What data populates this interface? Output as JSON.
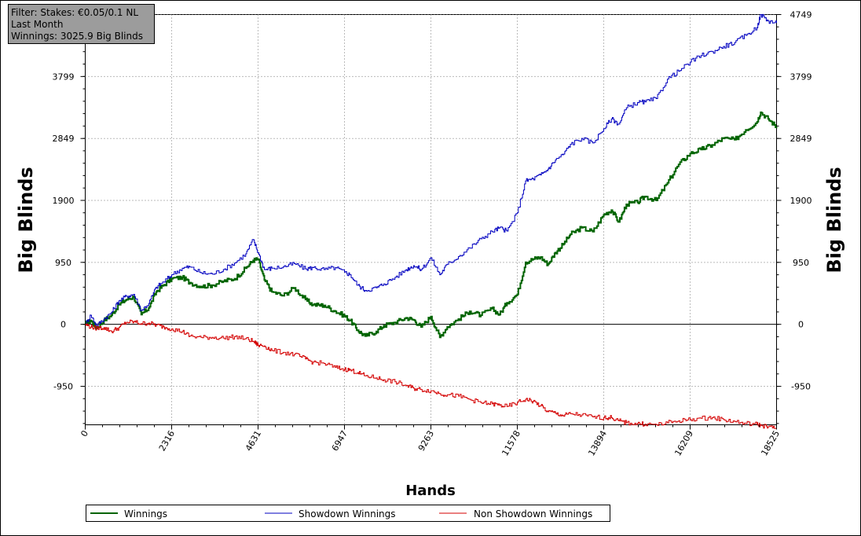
{
  "filter_box": {
    "line1": "Filter: Stakes: €0.05/0.1 NL",
    "line2": "Last Month",
    "line3": "Winnings: 3025.9 Big Blinds"
  },
  "chart_data": {
    "type": "line",
    "xlabel": "Hands",
    "ylabel_left": "Big Blinds",
    "ylabel_right": "Big Blinds",
    "xlim": [
      0,
      18525
    ],
    "ylim": [
      -1540,
      4749
    ],
    "x_ticks": [
      0,
      2316,
      4631,
      6947,
      9263,
      11578,
      13894,
      16209,
      18525
    ],
    "y_ticks": [
      -950,
      0,
      950,
      1900,
      2849,
      3799,
      4749
    ],
    "grid": true,
    "legend_position": "bottom",
    "series": [
      {
        "name": "Winnings",
        "color": "#006400",
        "points": [
          [
            0,
            0
          ],
          [
            150,
            60
          ],
          [
            300,
            -60
          ],
          [
            500,
            60
          ],
          [
            700,
            140
          ],
          [
            900,
            300
          ],
          [
            1100,
            380
          ],
          [
            1300,
            420
          ],
          [
            1500,
            150
          ],
          [
            1700,
            250
          ],
          [
            1900,
            500
          ],
          [
            2100,
            600
          ],
          [
            2316,
            700
          ],
          [
            2600,
            720
          ],
          [
            2800,
            640
          ],
          [
            3100,
            580
          ],
          [
            3400,
            600
          ],
          [
            3700,
            660
          ],
          [
            4000,
            700
          ],
          [
            4300,
            860
          ],
          [
            4500,
            980
          ],
          [
            4631,
            1000
          ],
          [
            4800,
            680
          ],
          [
            5000,
            500
          ],
          [
            5300,
            440
          ],
          [
            5600,
            560
          ],
          [
            5900,
            380
          ],
          [
            6100,
            300
          ],
          [
            6400,
            290
          ],
          [
            6700,
            200
          ],
          [
            6947,
            130
          ],
          [
            7100,
            60
          ],
          [
            7300,
            -90
          ],
          [
            7500,
            -180
          ],
          [
            7800,
            -110
          ],
          [
            8000,
            -20
          ],
          [
            8300,
            30
          ],
          [
            8600,
            100
          ],
          [
            8800,
            70
          ],
          [
            9000,
            -40
          ],
          [
            9263,
            120
          ],
          [
            9500,
            -200
          ],
          [
            9700,
            -40
          ],
          [
            10000,
            80
          ],
          [
            10300,
            200
          ],
          [
            10600,
            140
          ],
          [
            10900,
            240
          ],
          [
            11100,
            150
          ],
          [
            11300,
            330
          ],
          [
            11578,
            460
          ],
          [
            11800,
            950
          ],
          [
            12000,
            1000
          ],
          [
            12200,
            1030
          ],
          [
            12400,
            920
          ],
          [
            12600,
            1100
          ],
          [
            12800,
            1220
          ],
          [
            13000,
            1380
          ],
          [
            13300,
            1480
          ],
          [
            13600,
            1420
          ],
          [
            13894,
            1680
          ],
          [
            14100,
            1750
          ],
          [
            14300,
            1570
          ],
          [
            14500,
            1840
          ],
          [
            14800,
            1870
          ],
          [
            15000,
            1960
          ],
          [
            15300,
            1900
          ],
          [
            15600,
            2170
          ],
          [
            15900,
            2450
          ],
          [
            16209,
            2620
          ],
          [
            16500,
            2680
          ],
          [
            16800,
            2750
          ],
          [
            17100,
            2850
          ],
          [
            17400,
            2830
          ],
          [
            17700,
            2980
          ],
          [
            18000,
            3100
          ],
          [
            18100,
            3250
          ],
          [
            18300,
            3150
          ],
          [
            18525,
            3026
          ]
        ]
      },
      {
        "name": "Showdown Winnings",
        "color": "#0000c0",
        "points": [
          [
            0,
            0
          ],
          [
            150,
            140
          ],
          [
            300,
            -20
          ],
          [
            500,
            80
          ],
          [
            700,
            180
          ],
          [
            900,
            360
          ],
          [
            1100,
            430
          ],
          [
            1300,
            460
          ],
          [
            1500,
            210
          ],
          [
            1700,
            320
          ],
          [
            1900,
            570
          ],
          [
            2100,
            650
          ],
          [
            2316,
            760
          ],
          [
            2600,
            860
          ],
          [
            2800,
            880
          ],
          [
            3100,
            790
          ],
          [
            3400,
            770
          ],
          [
            3700,
            840
          ],
          [
            4000,
            940
          ],
          [
            4300,
            1080
          ],
          [
            4500,
            1300
          ],
          [
            4631,
            1100
          ],
          [
            4800,
            840
          ],
          [
            5000,
            860
          ],
          [
            5300,
            880
          ],
          [
            5600,
            930
          ],
          [
            5900,
            850
          ],
          [
            6100,
            870
          ],
          [
            6400,
            840
          ],
          [
            6700,
            870
          ],
          [
            6947,
            800
          ],
          [
            7100,
            760
          ],
          [
            7300,
            600
          ],
          [
            7500,
            520
          ],
          [
            7800,
            560
          ],
          [
            8000,
            620
          ],
          [
            8300,
            720
          ],
          [
            8600,
            840
          ],
          [
            8800,
            900
          ],
          [
            9000,
            840
          ],
          [
            9263,
            1020
          ],
          [
            9500,
            760
          ],
          [
            9700,
            920
          ],
          [
            10000,
            1040
          ],
          [
            10300,
            1170
          ],
          [
            10600,
            1310
          ],
          [
            10900,
            1420
          ],
          [
            11100,
            1480
          ],
          [
            11300,
            1430
          ],
          [
            11578,
            1710
          ],
          [
            11800,
            2200
          ],
          [
            12000,
            2230
          ],
          [
            12200,
            2290
          ],
          [
            12400,
            2380
          ],
          [
            12600,
            2520
          ],
          [
            12800,
            2600
          ],
          [
            13000,
            2760
          ],
          [
            13300,
            2850
          ],
          [
            13600,
            2780
          ],
          [
            13894,
            3000
          ],
          [
            14100,
            3150
          ],
          [
            14300,
            3070
          ],
          [
            14500,
            3320
          ],
          [
            14800,
            3400
          ],
          [
            15000,
            3410
          ],
          [
            15300,
            3460
          ],
          [
            15600,
            3760
          ],
          [
            15900,
            3880
          ],
          [
            16209,
            4020
          ],
          [
            16500,
            4120
          ],
          [
            16800,
            4180
          ],
          [
            17100,
            4260
          ],
          [
            17400,
            4320
          ],
          [
            17700,
            4430
          ],
          [
            18000,
            4550
          ],
          [
            18100,
            4749
          ],
          [
            18300,
            4650
          ],
          [
            18525,
            4620
          ]
        ]
      },
      {
        "name": "Non Showdown Winnings",
        "color": "#d40000",
        "points": [
          [
            0,
            0
          ],
          [
            150,
            -40
          ],
          [
            300,
            -60
          ],
          [
            500,
            -50
          ],
          [
            700,
            -110
          ],
          [
            900,
            -50
          ],
          [
            1100,
            30
          ],
          [
            1300,
            40
          ],
          [
            1500,
            10
          ],
          [
            1700,
            20
          ],
          [
            1900,
            -10
          ],
          [
            2100,
            -40
          ],
          [
            2316,
            -70
          ],
          [
            2600,
            -110
          ],
          [
            2800,
            -180
          ],
          [
            3100,
            -200
          ],
          [
            3400,
            -200
          ],
          [
            3700,
            -210
          ],
          [
            4000,
            -190
          ],
          [
            4300,
            -220
          ],
          [
            4500,
            -260
          ],
          [
            4631,
            -320
          ],
          [
            4800,
            -330
          ],
          [
            5000,
            -400
          ],
          [
            5300,
            -430
          ],
          [
            5600,
            -460
          ],
          [
            5900,
            -530
          ],
          [
            6100,
            -580
          ],
          [
            6400,
            -600
          ],
          [
            6700,
            -660
          ],
          [
            6947,
            -690
          ],
          [
            7100,
            -700
          ],
          [
            7300,
            -740
          ],
          [
            7500,
            -790
          ],
          [
            7800,
            -820
          ],
          [
            8000,
            -850
          ],
          [
            8300,
            -880
          ],
          [
            8600,
            -940
          ],
          [
            8800,
            -980
          ],
          [
            9000,
            -1000
          ],
          [
            9263,
            -1020
          ],
          [
            9500,
            -1060
          ],
          [
            9700,
            -1080
          ],
          [
            10000,
            -1100
          ],
          [
            10300,
            -1150
          ],
          [
            10600,
            -1200
          ],
          [
            10900,
            -1220
          ],
          [
            11100,
            -1240
          ],
          [
            11300,
            -1260
          ],
          [
            11578,
            -1200
          ],
          [
            11800,
            -1150
          ],
          [
            12000,
            -1180
          ],
          [
            12200,
            -1250
          ],
          [
            12400,
            -1340
          ],
          [
            12600,
            -1360
          ],
          [
            12800,
            -1400
          ],
          [
            13000,
            -1370
          ],
          [
            13300,
            -1390
          ],
          [
            13600,
            -1420
          ],
          [
            13894,
            -1430
          ],
          [
            14100,
            -1430
          ],
          [
            14300,
            -1480
          ],
          [
            14500,
            -1510
          ],
          [
            14800,
            -1520
          ],
          [
            15000,
            -1530
          ],
          [
            15300,
            -1540
          ],
          [
            15600,
            -1510
          ],
          [
            15900,
            -1480
          ],
          [
            16209,
            -1460
          ],
          [
            16500,
            -1440
          ],
          [
            16800,
            -1430
          ],
          [
            17100,
            -1460
          ],
          [
            17400,
            -1490
          ],
          [
            17700,
            -1520
          ],
          [
            18000,
            -1530
          ],
          [
            18100,
            -1550
          ],
          [
            18300,
            -1570
          ],
          [
            18525,
            -1600
          ]
        ]
      }
    ]
  }
}
